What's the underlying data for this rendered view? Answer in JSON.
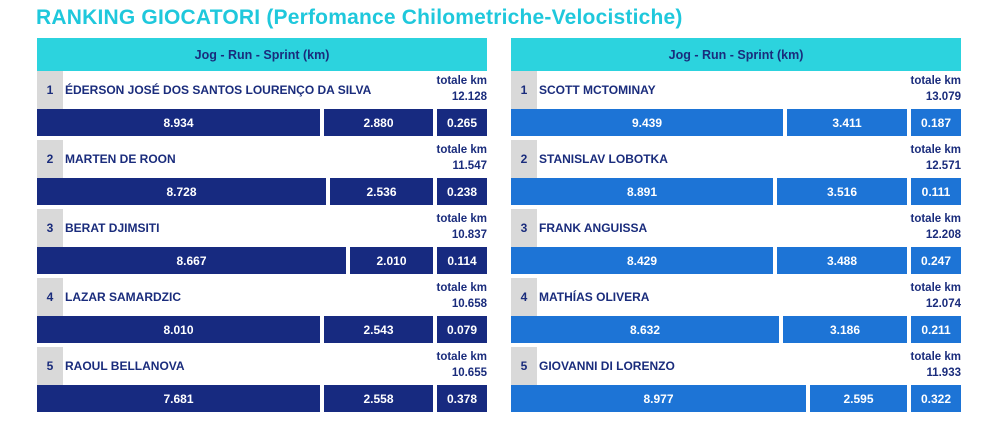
{
  "title": "RANKING GIOCATORI (Perfomance Chilometriche-Velocistiche)",
  "panels": [
    {
      "header": "Jog - Run - Sprint (km)",
      "players": [
        {
          "rank": "1",
          "name": "ÉDERSON JOSÉ DOS SANTOS LOURENÇO DA SILVA",
          "total_label": "totale km",
          "total": "12.128",
          "jog": "8.934",
          "run": "2.880",
          "sprint": "0.265"
        },
        {
          "rank": "2",
          "name": "MARTEN DE ROON",
          "total_label": "totale km",
          "total": "11.547",
          "jog": "8.728",
          "run": "2.536",
          "sprint": "0.238"
        },
        {
          "rank": "3",
          "name": "BERAT DJIMSITI",
          "total_label": "totale km",
          "total": "10.837",
          "jog": "8.667",
          "run": "2.010",
          "sprint": "0.114"
        },
        {
          "rank": "4",
          "name": "LAZAR SAMARDZIC",
          "total_label": "totale km",
          "total": "10.658",
          "jog": "8.010",
          "run": "2.543",
          "sprint": "0.079"
        },
        {
          "rank": "5",
          "name": "RAOUL BELLANOVA",
          "total_label": "totale km",
          "total": "10.655",
          "jog": "7.681",
          "run": "2.558",
          "sprint": "0.378"
        }
      ],
      "bar_color": "#172a80"
    },
    {
      "header": "Jog - Run - Sprint (km)",
      "players": [
        {
          "rank": "1",
          "name": "SCOTT MCTOMINAY",
          "total_label": "totale km",
          "total": "13.079",
          "jog": "9.439",
          "run": "3.411",
          "sprint": "0.187"
        },
        {
          "rank": "2",
          "name": "STANISLAV LOBOTKA",
          "total_label": "totale km",
          "total": "12.571",
          "jog": "8.891",
          "run": "3.516",
          "sprint": "0.111"
        },
        {
          "rank": "3",
          "name": "FRANK ANGUISSA",
          "total_label": "totale km",
          "total": "12.208",
          "jog": "8.429",
          "run": "3.488",
          "sprint": "0.247"
        },
        {
          "rank": "4",
          "name": "MATHÍAS OLIVERA",
          "total_label": "totale km",
          "total": "12.074",
          "jog": "8.632",
          "run": "3.186",
          "sprint": "0.211"
        },
        {
          "rank": "5",
          "name": "GIOVANNI DI LORENZO",
          "total_label": "totale km",
          "total": "11.933",
          "jog": "8.977",
          "run": "2.595",
          "sprint": "0.322"
        }
      ],
      "bar_color": "#1d74d6"
    }
  ],
  "colors": {
    "title": "#1fc8dc",
    "header_bg": "#2cd3de",
    "text": "#1a2c7c",
    "rank_bg": "#d9d9d9"
  }
}
